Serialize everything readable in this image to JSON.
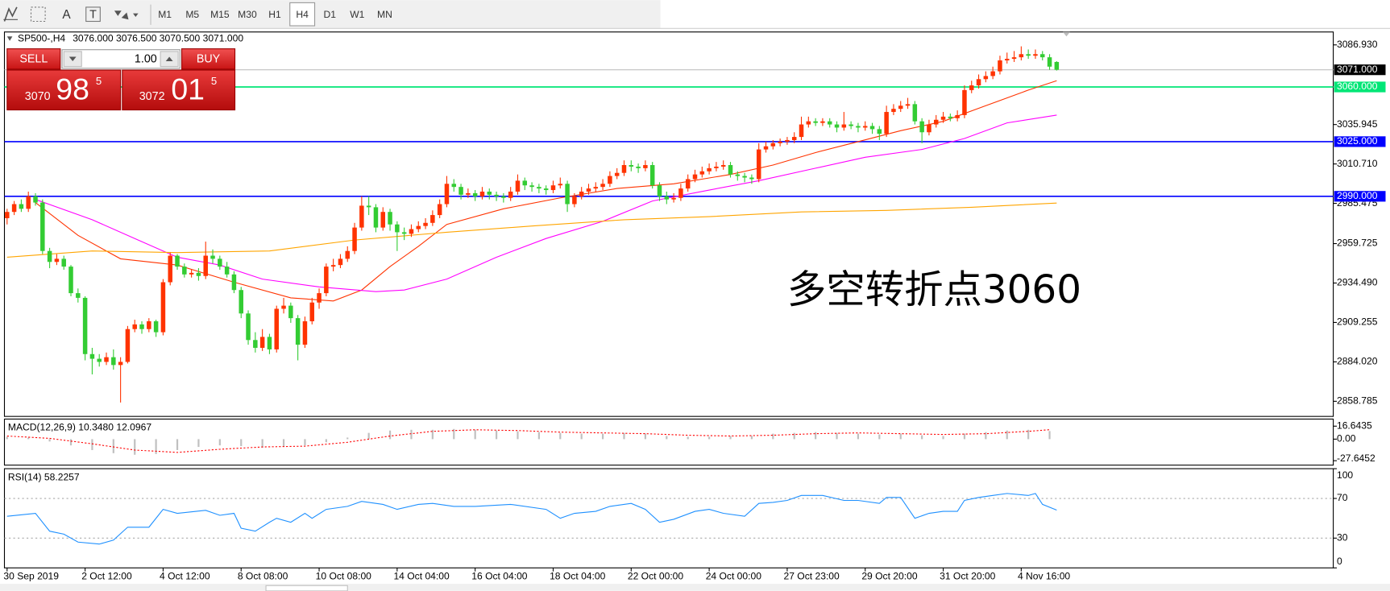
{
  "toolbar": {
    "tools": [
      "A",
      "T"
    ],
    "timeframes": [
      "M1",
      "M5",
      "M15",
      "M30",
      "H1",
      "H4",
      "D1",
      "W1",
      "MN"
    ],
    "active_timeframe": "H4"
  },
  "trade_panel": {
    "sell": "SELL",
    "buy": "BUY",
    "volume": "1.00",
    "bid": {
      "prefix": "3070",
      "big": "98",
      "suffix": "5"
    },
    "ask": {
      "prefix": "3072",
      "big": "01",
      "suffix": "5"
    }
  },
  "chart_data": [
    {
      "type": "candlestick",
      "title": "SP500-,H4",
      "ohlc_label": "3076.000 3076.500 3070.500 3071.000",
      "bull_color": "#ff3300",
      "bear_color": "#33cc33",
      "categories": [
        "30 Sep 2019",
        null,
        null,
        null,
        null,
        null,
        null,
        null,
        null,
        null,
        null,
        "2 Oct 12:00",
        null,
        null,
        null,
        null,
        null,
        null,
        null,
        null,
        null,
        null,
        "4 Oct 12:00",
        null,
        null,
        null,
        null,
        null,
        null,
        null,
        null,
        null,
        null,
        "8 Oct 08:00",
        null,
        null,
        null,
        null,
        null,
        null,
        null,
        null,
        null,
        null,
        "10 Oct 08:00",
        null,
        null,
        null,
        null,
        null,
        null,
        null,
        null,
        null,
        null,
        "14 Oct 04:00",
        null,
        null,
        null,
        null,
        null,
        null,
        null,
        null,
        null,
        null,
        "16 Oct 04:00",
        null,
        null,
        null,
        null,
        null,
        null,
        null,
        null,
        null,
        null,
        "18 Oct 04:00",
        null,
        null,
        null,
        null,
        null,
        null,
        null,
        null,
        null,
        null,
        "22 Oct 00:00",
        null,
        null,
        null,
        null,
        null,
        null,
        null,
        null,
        null,
        null,
        "24 Oct 00:00",
        null,
        null,
        null,
        null,
        null,
        null,
        null,
        null,
        null,
        null,
        "27 Oct 23:00",
        null,
        null,
        null,
        null,
        null,
        null,
        null,
        null,
        null,
        null,
        "29 Oct 20:00",
        null,
        null,
        null,
        null,
        null,
        null,
        null,
        null,
        null,
        null,
        "31 Oct 20:00",
        null,
        null,
        null,
        null,
        null,
        null,
        null,
        null,
        null,
        null,
        "4 Nov 16:00",
        null,
        null,
        null,
        null,
        null
      ],
      "open": [
        2976,
        2980,
        2985,
        2982,
        2990,
        2986,
        2955,
        2948,
        2950,
        2945,
        2928,
        2925,
        2889,
        2886,
        2884,
        2887,
        2882,
        2884,
        2905,
        2908,
        2905,
        2910,
        2903,
        2935,
        2952,
        2945,
        2940,
        2941,
        2939,
        2952,
        2950,
        2945,
        2940,
        2930,
        2915,
        2898,
        2893,
        2900,
        2892,
        2918,
        2920,
        2912,
        2895,
        2910,
        2922,
        2928,
        2945,
        2946,
        2950,
        2955,
        2970,
        2984,
        2983,
        2970,
        2980,
        2972,
        2967,
        2966,
        2969,
        2971,
        2973,
        2978,
        2985,
        2998,
        2996,
        2991,
        2992,
        2990,
        2993,
        2991,
        2990,
        2989,
        2993,
        3000,
        2997,
        2996,
        2995,
        2994,
        2997,
        2998,
        2985,
        2990,
        2993,
        2995,
        2996,
        2998,
        3003,
        3005,
        3010,
        3009,
        3008,
        3010,
        2997,
        2990,
        2988,
        2989,
        2995,
        3001,
        3004,
        3006,
        3008,
        3009,
        3010,
        3004,
        3003,
        3002,
        3001,
        3020,
        3022,
        3024,
        3025,
        3026,
        3028,
        3036,
        3038,
        3037,
        3038,
        3036,
        3034,
        3036,
        3035,
        3034,
        3035,
        3033,
        3030,
        3044,
        3046,
        3048,
        3049,
        3038,
        3031,
        3036,
        3039,
        3041,
        3040,
        3042,
        3058,
        3061,
        3065,
        3067,
        3070,
        3077,
        3078,
        3079,
        3081,
        3080,
        3081,
        3079,
        3076
      ],
      "high": [
        2982,
        2987,
        2988,
        2993,
        2992,
        2988,
        2957,
        2953,
        2952,
        2946,
        2931,
        2926,
        2893,
        2889,
        2890,
        2892,
        2887,
        2907,
        2911,
        2910,
        2912,
        2911,
        2937,
        2954,
        2953,
        2947,
        2943,
        2944,
        2961,
        2956,
        2952,
        2948,
        2942,
        2932,
        2917,
        2903,
        2905,
        2902,
        2920,
        2925,
        2922,
        2914,
        2913,
        2925,
        2931,
        2947,
        2950,
        2953,
        2958,
        2973,
        2990,
        2990,
        2985,
        2983,
        2982,
        2974,
        2970,
        2972,
        2974,
        2976,
        2981,
        2988,
        3003,
        3001,
        2998,
        2995,
        2994,
        2996,
        2995,
        2993,
        2992,
        2996,
        3004,
        3002,
        2999,
        2998,
        2997,
        3000,
        3002,
        3000,
        2992,
        2996,
        2998,
        2999,
        3001,
        3006,
        3008,
        3013,
        3013,
        3011,
        3013,
        3012,
        2999,
        2993,
        2992,
        2998,
        3004,
        3007,
        3009,
        3011,
        3012,
        3013,
        3012,
        3006,
        3005,
        3004,
        3024,
        3025,
        3026,
        3027,
        3028,
        3031,
        3041,
        3041,
        3040,
        3040,
        3040,
        3038,
        3044,
        3038,
        3037,
        3038,
        3037,
        3035,
        3048,
        3049,
        3051,
        3053,
        3051,
        3040,
        3039,
        3042,
        3044,
        3043,
        3045,
        3061,
        3064,
        3068,
        3070,
        3073,
        3080,
        3082,
        3083,
        3086,
        3084,
        3084,
        3083,
        3081,
        3076.5
      ],
      "low": [
        2972,
        2978,
        2980,
        2980,
        2984,
        2953,
        2944,
        2946,
        2943,
        2926,
        2922,
        2885,
        2876,
        2881,
        2882,
        2879,
        2858,
        2883,
        2903,
        2902,
        2903,
        2900,
        2901,
        2933,
        2943,
        2938,
        2938,
        2936,
        2937,
        2947,
        2943,
        2938,
        2928,
        2912,
        2895,
        2890,
        2891,
        2889,
        2890,
        2915,
        2909,
        2885,
        2893,
        2908,
        2918,
        2926,
        2942,
        2944,
        2948,
        2953,
        2968,
        2978,
        2967,
        2968,
        2968,
        2955,
        2962,
        2964,
        2967,
        2969,
        2971,
        2976,
        2983,
        2993,
        2988,
        2989,
        2987,
        2988,
        2988,
        2987,
        2986,
        2987,
        2991,
        2994,
        2993,
        2992,
        2991,
        2992,
        2995,
        2980,
        2983,
        2988,
        2991,
        2993,
        2994,
        2996,
        3001,
        3003,
        3006,
        3005,
        3006,
        2995,
        2987,
        2985,
        2986,
        2987,
        2993,
        2999,
        3002,
        3004,
        3006,
        3007,
        3002,
        3000,
        2999,
        2998,
        2999,
        3018,
        3020,
        3022,
        3023,
        3024,
        3026,
        3034,
        3035,
        3035,
        3034,
        3031,
        3032,
        3033,
        3031,
        3032,
        3030,
        3026,
        3028,
        3042,
        3044,
        3046,
        3036,
        3024,
        3029,
        3034,
        3037,
        3038,
        3038,
        3040,
        3056,
        3059,
        3063,
        3065,
        3068,
        3075,
        3076,
        3077,
        3078,
        3078,
        3077,
        3071,
        3070.5
      ],
      "close": [
        2980,
        2985,
        2982,
        2990,
        2986,
        2955,
        2948,
        2950,
        2945,
        2928,
        2925,
        2889,
        2886,
        2884,
        2887,
        2882,
        2884,
        2905,
        2908,
        2905,
        2910,
        2903,
        2935,
        2952,
        2945,
        2940,
        2941,
        2939,
        2952,
        2950,
        2945,
        2940,
        2930,
        2915,
        2898,
        2893,
        2900,
        2892,
        2918,
        2920,
        2912,
        2895,
        2910,
        2922,
        2928,
        2945,
        2946,
        2950,
        2955,
        2970,
        2984,
        2983,
        2970,
        2980,
        2972,
        2967,
        2966,
        2969,
        2971,
        2973,
        2978,
        2985,
        2998,
        2996,
        2991,
        2992,
        2990,
        2993,
        2991,
        2990,
        2989,
        2993,
        3000,
        2997,
        2996,
        2995,
        2994,
        2997,
        2998,
        2985,
        2990,
        2993,
        2995,
        2996,
        2998,
        3003,
        3005,
        3010,
        3009,
        3008,
        3010,
        2997,
        2990,
        2988,
        2989,
        2995,
        3001,
        3004,
        3006,
        3008,
        3009,
        3010,
        3004,
        3003,
        3002,
        3001,
        3020,
        3022,
        3024,
        3025,
        3026,
        3028,
        3036,
        3038,
        3037,
        3038,
        3036,
        3034,
        3036,
        3035,
        3034,
        3035,
        3033,
        3030,
        3044,
        3046,
        3048,
        3049,
        3038,
        3031,
        3036,
        3039,
        3041,
        3040,
        3042,
        3058,
        3061,
        3065,
        3067,
        3070,
        3077,
        3078,
        3079,
        3081,
        3080,
        3081,
        3079,
        3073,
        3071
      ],
      "lines": [
        {
          "color": "#ff3300",
          "x": [
            4,
            10,
            16,
            24,
            32,
            40,
            46,
            50,
            54,
            58,
            62,
            70,
            78,
            86,
            94,
            102,
            108,
            114,
            120,
            126,
            132,
            138,
            144,
            148
          ],
          "values": [
            2986,
            2965,
            2950,
            2946,
            2935,
            2925,
            2923,
            2930,
            2945,
            2958,
            2972,
            2982,
            2989,
            2995,
            2998,
            3004,
            3010,
            3018,
            3025,
            3032,
            3038,
            3048,
            3058,
            3064
          ]
        },
        {
          "color": "#ff00ff",
          "x": [
            4,
            12,
            18,
            24,
            30,
            36,
            44,
            52,
            56,
            62,
            69,
            76,
            84,
            91,
            99,
            106,
            114,
            121,
            129,
            135,
            141,
            148
          ],
          "values": [
            2988,
            2975,
            2963,
            2951,
            2946,
            2937,
            2932,
            2929,
            2930,
            2937,
            2951,
            2963,
            2974,
            2987,
            2994,
            3000,
            3008,
            3015,
            3020,
            3027,
            3037,
            3042
          ]
        },
        {
          "color": "#ffa500",
          "x": [
            0,
            12,
            24,
            37,
            49,
            62,
            74,
            87,
            99,
            112,
            124,
            136,
            148
          ],
          "values": [
            2951,
            2955,
            2954,
            2955,
            2962,
            2967,
            2971,
            2975,
            2977,
            2980,
            2981,
            2983,
            2985.7
          ]
        }
      ],
      "levels": [
        {
          "value": 3060,
          "label": "3060.000",
          "color": "#00e676"
        },
        {
          "value": 3025,
          "label": "3025.000",
          "color": "#0000ff"
        },
        {
          "value": 2990,
          "label": "2990.000",
          "color": "#0000ff"
        }
      ],
      "current_price": {
        "value": 3071,
        "label": "3071.000",
        "color": "#000000"
      },
      "annotation": "多空转折点3060",
      "annotation_color": "#ff1a1a",
      "ylim": [
        2849.1,
        3095.2
      ],
      "yticks": [
        {
          "value": 3086.93,
          "label": "3086.930"
        },
        {
          "value": 3035.945,
          "label": "3035.945"
        },
        {
          "value": 3010.71,
          "label": "3010.710"
        },
        {
          "value": 2985.475,
          "label": "2985.475"
        },
        {
          "value": 2959.725,
          "label": "2959.725"
        },
        {
          "value": 2934.49,
          "label": "2934.490"
        },
        {
          "value": 2909.255,
          "label": "2909.255"
        },
        {
          "value": 2884.02,
          "label": "2884.020"
        },
        {
          "value": 2858.785,
          "label": "2858.785"
        }
      ]
    },
    {
      "type": "macd",
      "title": "MACD(12,26,9) 10.3480 12.0967",
      "color": "#c0c0c0",
      "x": [
        0,
        3,
        6,
        9,
        12,
        15,
        18,
        21,
        24,
        27,
        30,
        33,
        36,
        39,
        42,
        45,
        48,
        51,
        54,
        57,
        60,
        63,
        66,
        69,
        72,
        75,
        78,
        81,
        84,
        87,
        90,
        93,
        96,
        99,
        102,
        105,
        108,
        111,
        114,
        117,
        120,
        123,
        126,
        129,
        132,
        135,
        138,
        141,
        144,
        147
      ],
      "values": [
        3,
        2,
        -3,
        -8,
        -14,
        -18,
        -20,
        -19,
        -14,
        -10,
        -8,
        -9,
        -11,
        -10,
        -8,
        -4,
        2,
        8,
        11,
        12,
        12,
        13,
        12,
        11,
        10,
        9,
        8,
        7,
        7,
        8,
        7,
        4,
        3,
        3,
        4,
        4,
        7,
        8,
        9,
        8,
        7,
        6,
        7,
        5,
        4,
        7,
        9,
        11,
        12,
        10.348
      ],
      "signal": {
        "color": "#ff0000",
        "x": [
          0,
          6,
          12,
          18,
          24,
          30,
          36,
          42,
          48,
          54,
          60,
          66,
          72,
          78,
          84,
          90,
          96,
          102,
          108,
          114,
          120,
          126,
          132,
          138,
          144,
          147
        ],
        "values": [
          4,
          1,
          -6,
          -14,
          -17,
          -13,
          -10,
          -9,
          -4,
          4,
          10,
          12,
          11,
          9,
          8,
          7,
          5,
          4,
          5,
          7,
          8,
          7,
          6,
          7,
          10,
          12.0967
        ]
      },
      "ylim": [
        -33.32,
        25.73
      ],
      "yticks": [
        16.6435,
        {
          "value": 0,
          "label": "0.00"
        },
        -27.6452
      ]
    },
    {
      "type": "line",
      "title": "RSI(14) 58.2257",
      "color": "#1e90ff",
      "x": [
        0,
        4,
        6,
        8,
        10,
        13,
        15,
        17,
        20,
        22,
        24,
        28,
        30,
        32,
        33,
        35,
        37,
        38,
        40,
        42,
        43,
        45,
        48,
        50,
        53,
        55,
        58,
        60,
        63,
        66,
        71,
        76,
        78,
        80,
        83,
        85,
        88,
        90,
        92,
        94,
        97,
        99,
        101,
        104,
        106,
        108,
        110,
        112,
        115,
        118,
        120,
        123,
        124,
        126,
        128,
        130,
        132,
        134,
        135,
        137,
        139,
        141,
        144,
        145,
        146,
        148
      ],
      "values": [
        52,
        55,
        37,
        34,
        26,
        24,
        28,
        41,
        41,
        59,
        55,
        58,
        53,
        55,
        40,
        37,
        46,
        50,
        46,
        55,
        50,
        59,
        62,
        67,
        64,
        59,
        64,
        65,
        62,
        62,
        64,
        59,
        50,
        55,
        57,
        62,
        65,
        59,
        46,
        49,
        57,
        59,
        55,
        52,
        65,
        66,
        68,
        73,
        73,
        68,
        68,
        65,
        71,
        71,
        50,
        55,
        57,
        57,
        68,
        71,
        73,
        75,
        73,
        75,
        64,
        58.2257
      ],
      "levels": [
        70,
        30
      ],
      "ylim": [
        0,
        100
      ],
      "yticks": [
        100,
        70,
        30,
        0
      ]
    }
  ]
}
